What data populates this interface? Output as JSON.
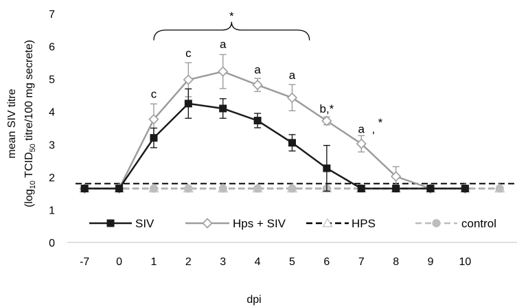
{
  "chart_data": {
    "type": "line",
    "xlabel": "dpi",
    "ylabel_line1": "mean SIV titre",
    "ylabel_line2_parts": [
      "(log",
      "10",
      " TCID",
      "50",
      " titre/100 mg secrete)"
    ],
    "categories": [
      "-7",
      "0",
      "1",
      "2",
      "3",
      "4",
      "5",
      "6",
      "7",
      "8",
      "9",
      "10",
      ""
    ],
    "ylim": [
      0,
      7
    ],
    "yticks": [
      0,
      1,
      2,
      3,
      4,
      5,
      6,
      7
    ],
    "threshold": 1.8,
    "series": [
      {
        "name": "SIV",
        "color": "#1a1a1a",
        "marker": "square",
        "line": "solid",
        "values": [
          1.65,
          1.65,
          3.2,
          4.25,
          4.1,
          3.73,
          3.05,
          2.27,
          1.65,
          1.65,
          1.65,
          1.65,
          null
        ],
        "errors": [
          0,
          0,
          0.3,
          0.45,
          0.3,
          0.22,
          0.25,
          0.7,
          0,
          0,
          0,
          0,
          null
        ]
      },
      {
        "name": "Hps + SIV",
        "color": "#9c9c9c",
        "marker": "diamond",
        "line": "solid",
        "values": [
          1.65,
          1.65,
          3.77,
          4.98,
          5.23,
          4.82,
          4.43,
          3.72,
          3.02,
          2.02,
          1.65,
          1.65,
          null
        ],
        "errors": [
          0,
          0,
          0.47,
          0.52,
          0.52,
          0.2,
          0.4,
          0.12,
          0.25,
          0.3,
          0,
          0,
          null
        ]
      },
      {
        "name": "HPS",
        "color": "#000000",
        "marker": "triangle",
        "line": "dashed",
        "values": [
          1.65,
          1.65,
          1.65,
          1.65,
          1.65,
          1.65,
          1.65,
          1.65,
          1.65,
          1.65,
          1.65,
          1.65,
          1.65
        ]
      },
      {
        "name": "control",
        "color": "#bdbdbd",
        "marker": "circle",
        "line": "dashed",
        "values": [
          1.65,
          1.65,
          1.65,
          1.65,
          1.65,
          1.65,
          1.65,
          1.65,
          1.65,
          1.65,
          1.65,
          1.65,
          1.65
        ]
      }
    ],
    "annotations": [
      {
        "text": "c",
        "x_index": 2,
        "y": 4.42
      },
      {
        "text": "c",
        "x_index": 3,
        "y": 5.68
      },
      {
        "text": "a",
        "x_index": 4,
        "y": 5.95
      },
      {
        "text": "a",
        "x_index": 5,
        "y": 5.17
      },
      {
        "text": "a",
        "x_index": 6,
        "y": 5.0
      },
      {
        "text": "b,*",
        "x_index": 7,
        "y": 3.97
      },
      {
        "text": "a",
        "x_index": 8,
        "y": 3.35
      },
      {
        "text": ",",
        "x_index": 8.35,
        "y": 3.35
      },
      {
        "text": "*",
        "x_index": 8.55,
        "y": 3.55
      }
    ],
    "bracket": {
      "from_index": 2,
      "to_index": 6.5,
      "label": "*",
      "y": 6.5
    }
  }
}
